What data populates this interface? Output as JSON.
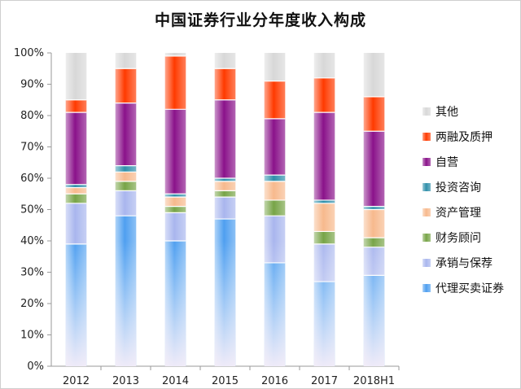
{
  "chart_data": {
    "type": "bar",
    "stacked": true,
    "percent": true,
    "title": "中国证券行业分年度收入构成",
    "categories": [
      "2012",
      "2013",
      "2014",
      "2015",
      "2016",
      "2017",
      "2018H1"
    ],
    "ylim": [
      0,
      100
    ],
    "yticks": [
      "0%",
      "10%",
      "20%",
      "30%",
      "40%",
      "50%",
      "60%",
      "70%",
      "80%",
      "90%",
      "100%"
    ],
    "grid": false,
    "legend": "right",
    "series": [
      {
        "name": "代理买卖证券",
        "color": "#4f9ff0",
        "values": [
          39,
          48,
          40,
          47,
          33,
          27,
          29
        ]
      },
      {
        "name": "承销与保荐",
        "color": "#a9b6ee",
        "values": [
          13,
          8,
          9,
          7,
          15,
          12,
          9
        ]
      },
      {
        "name": "财务顾问",
        "color": "#77a447",
        "values": [
          3,
          3,
          2,
          2,
          5,
          4,
          3
        ]
      },
      {
        "name": "资产管理",
        "color": "#f7b98d",
        "values": [
          2,
          3,
          3,
          3,
          6,
          9,
          9
        ]
      },
      {
        "name": "投资咨询",
        "color": "#2f8faa",
        "values": [
          1,
          2,
          1,
          1,
          2,
          1,
          1
        ]
      },
      {
        "name": "自营",
        "color": "#8a128a",
        "values": [
          23,
          20,
          27,
          25,
          18,
          28,
          24
        ]
      },
      {
        "name": "两融及质押",
        "color": "#ff3a00",
        "values": [
          4,
          11,
          17,
          10,
          12,
          11,
          11
        ]
      },
      {
        "name": "其他",
        "color": "#d8d8d8",
        "values": [
          15,
          5,
          1,
          5,
          9,
          8,
          14
        ]
      }
    ]
  }
}
